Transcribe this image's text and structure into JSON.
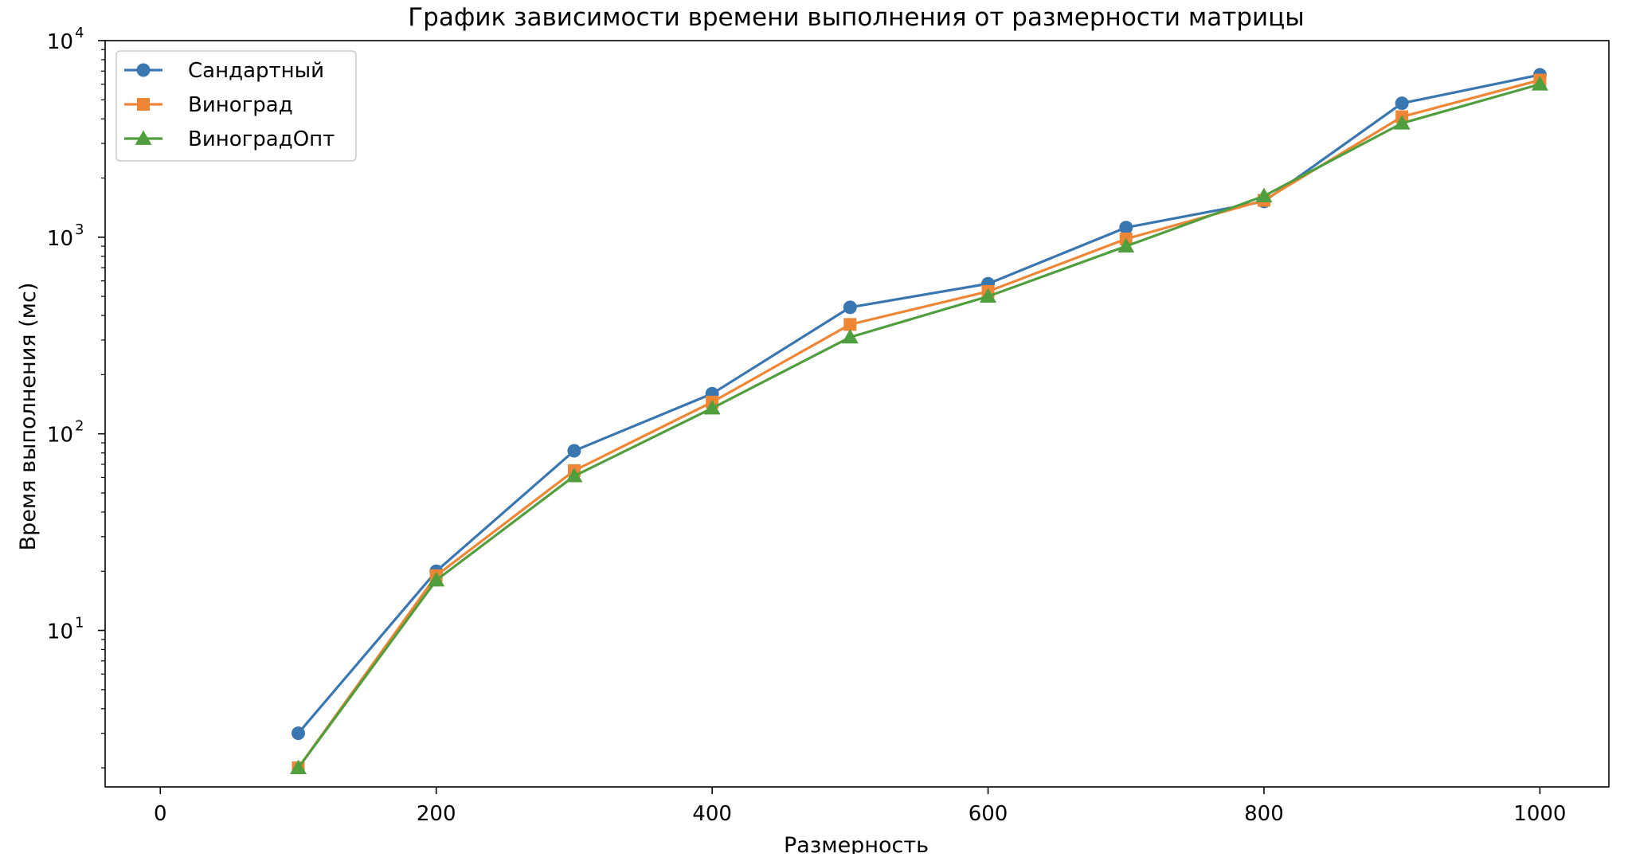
{
  "chart_data": {
    "type": "line",
    "title": "График зависимости времени выполнения от размерности матрицы",
    "xlabel": "Размерность",
    "ylabel": "Время выполнения (мс)",
    "xlim": [
      -40,
      1050
    ],
    "ylim": [
      1.6,
      10000
    ],
    "yscale": "log",
    "grid": false,
    "legend_position": "top-left",
    "xticks": [
      0,
      200,
      400,
      600,
      800,
      1000
    ],
    "xtick_labels": [
      "0",
      "200",
      "400",
      "600",
      "800",
      "1000"
    ],
    "yticks": [
      10,
      100,
      1000,
      10000
    ],
    "ytick_labels": [
      {
        "base": "10",
        "exp": "1"
      },
      {
        "base": "10",
        "exp": "2"
      },
      {
        "base": "10",
        "exp": "3"
      },
      {
        "base": "10",
        "exp": "4"
      }
    ],
    "x": [
      100,
      200,
      300,
      400,
      500,
      600,
      700,
      800,
      900,
      1000
    ],
    "series": [
      {
        "name": "Сандартный",
        "color": "#3a76af",
        "marker": "circle",
        "values": [
          3,
          20,
          82,
          160,
          440,
          580,
          1120,
          1520,
          4800,
          6700
        ]
      },
      {
        "name": "Виноград",
        "color": "#ef8636",
        "marker": "square",
        "values": [
          2,
          19,
          65,
          145,
          360,
          530,
          980,
          1540,
          4100,
          6300
        ]
      },
      {
        "name": "ВиноградОпт",
        "color": "#519e3e",
        "marker": "triangle",
        "values": [
          2,
          18,
          61,
          135,
          310,
          500,
          900,
          1620,
          3800,
          6000
        ]
      }
    ]
  }
}
